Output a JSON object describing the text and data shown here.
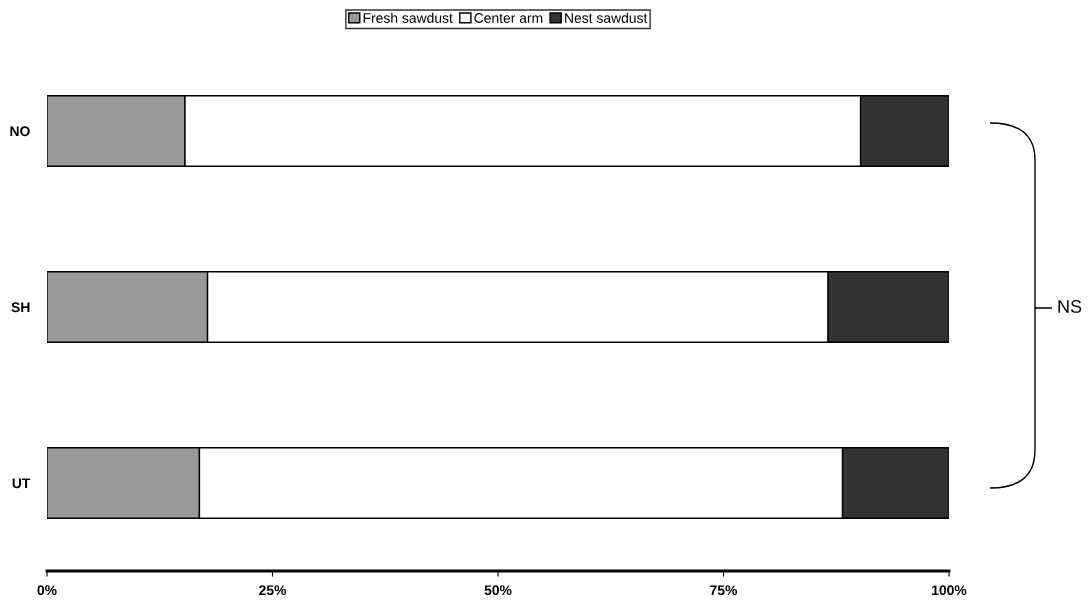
{
  "chart_data": {
    "type": "bar",
    "orientation": "horizontal",
    "stacked": true,
    "categories": [
      "NO",
      "SH",
      "UT"
    ],
    "series": [
      {
        "name": "Fresh sawdust",
        "color": "#999999",
        "values": [
          15.3,
          17.8,
          16.9
        ]
      },
      {
        "name": "Center arm",
        "color": "#ffffff",
        "values": [
          74.9,
          68.8,
          71.3
        ]
      },
      {
        "name": "Nest sawdust",
        "color": "#333333",
        "values": [
          9.8,
          13.4,
          11.8
        ]
      }
    ],
    "xlim": [
      0,
      100
    ],
    "xticks": [
      {
        "value": 0,
        "label": "0%"
      },
      {
        "value": 25,
        "label": "25%"
      },
      {
        "value": 50,
        "label": "50%"
      },
      {
        "value": 75,
        "label": "75%"
      },
      {
        "value": 100,
        "label": "100%"
      }
    ],
    "legend": "top",
    "grid": false,
    "annotations": [
      "NS"
    ]
  }
}
